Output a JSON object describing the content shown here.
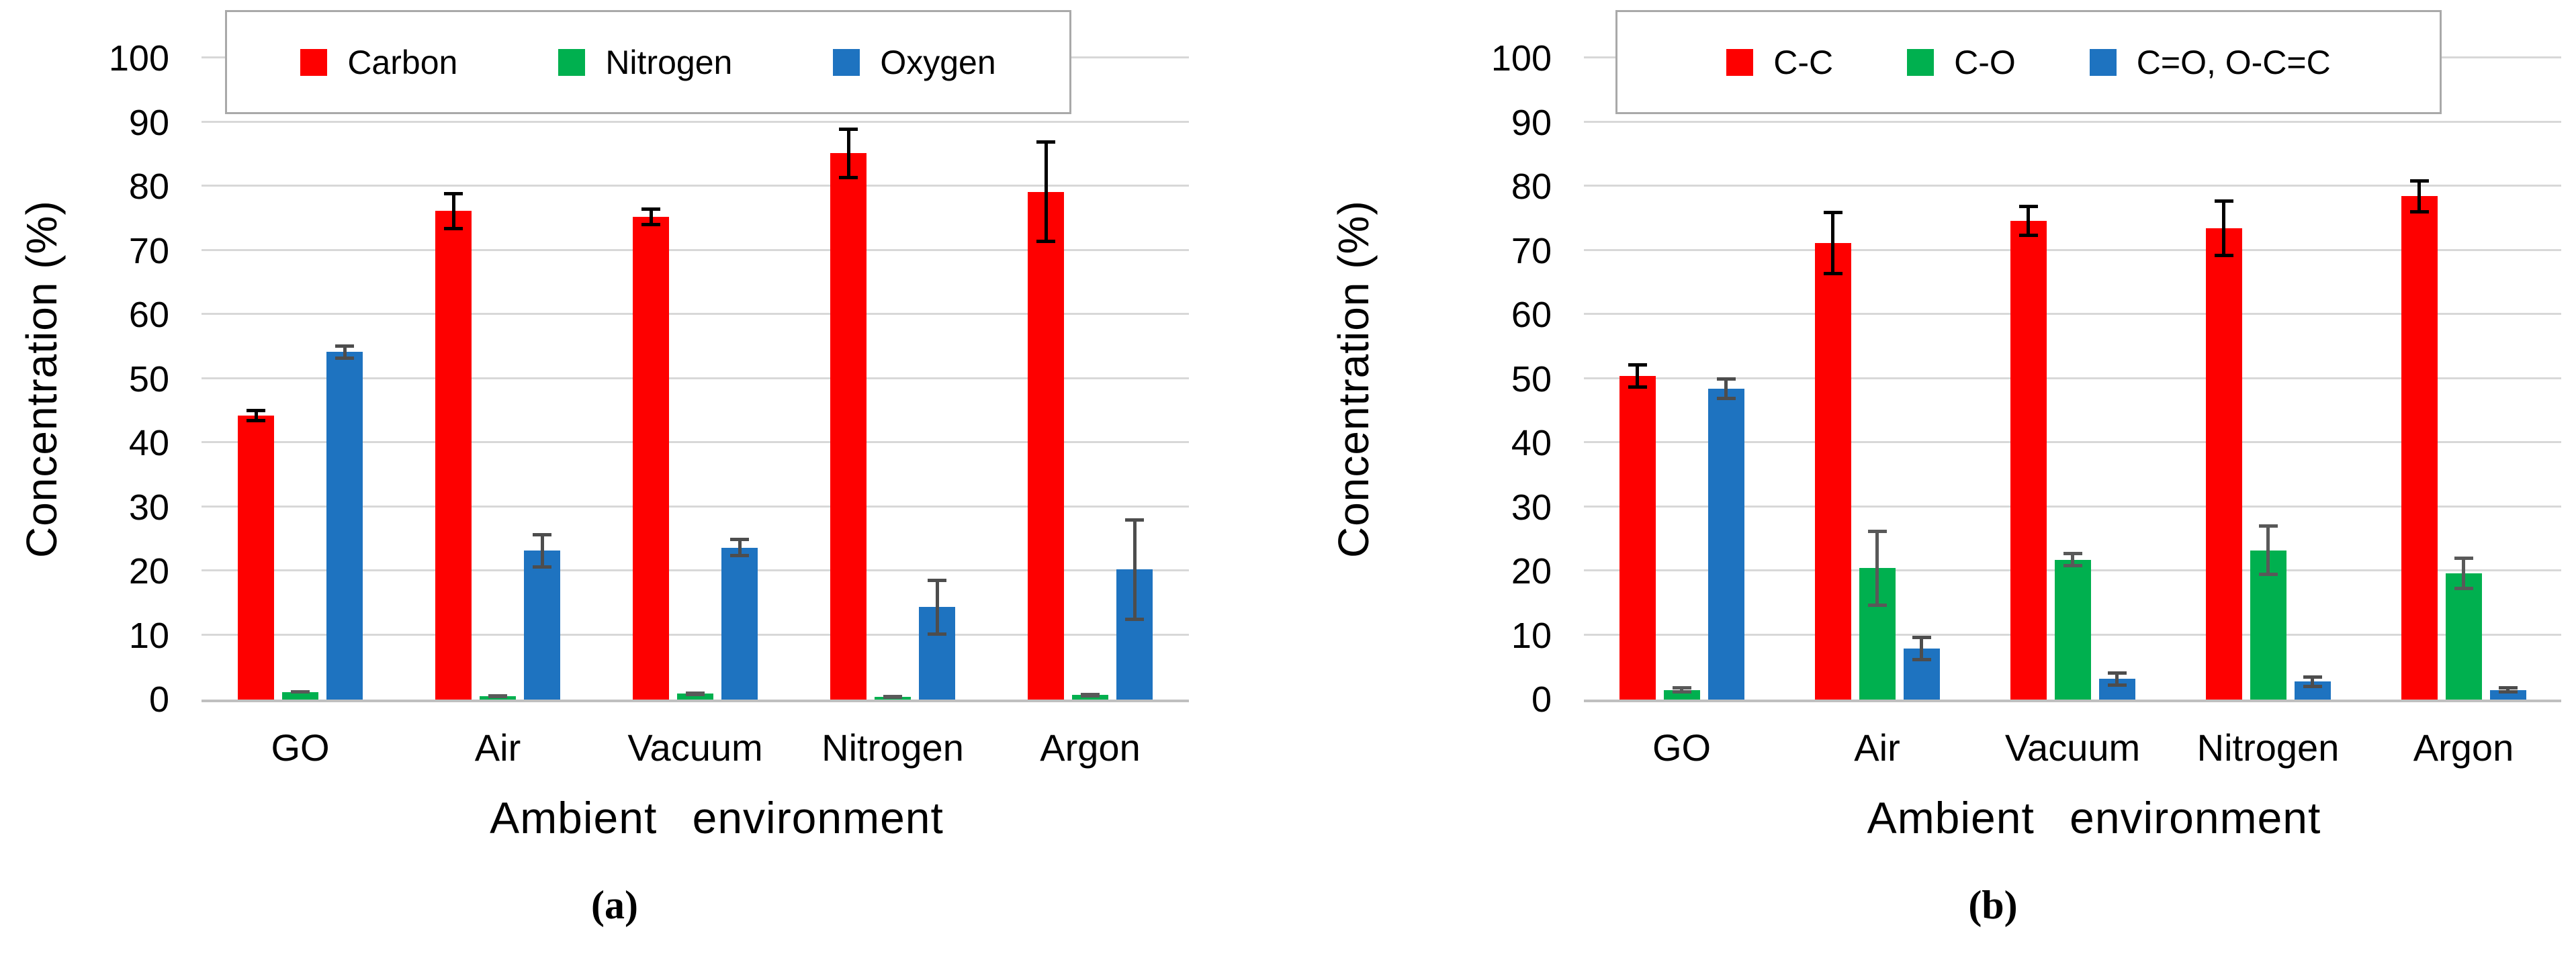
{
  "figure": {
    "background": "#FFFFFF",
    "gridline_color": "#D8D8D8",
    "axis_color": "#BFBFBF",
    "legend_border_color": "#A9A9A9"
  },
  "chart_data": [
    {
      "id": "a",
      "type": "bar",
      "caption": "(a)",
      "title": "",
      "xlabel": "Ambient  environment",
      "ylabel": "Concentration (%)",
      "ylim": [
        0,
        100
      ],
      "ytick_step": 10,
      "ytick_labels": [
        "0",
        "10",
        "20",
        "30",
        "40",
        "50",
        "60",
        "70",
        "80",
        "90",
        "100"
      ],
      "grid": true,
      "legend_position": "top",
      "categories": [
        "GO",
        "Air",
        "Vacuum",
        "Nitrogen",
        "Argon"
      ],
      "series": [
        {
          "name": "Carbon",
          "color": "#FE0000",
          "error_color": "#000000",
          "values": [
            44.3,
            76.2,
            75.3,
            85.2,
            79.2
          ],
          "errors": [
            1.0,
            3.0,
            1.5,
            4.0,
            8.0
          ]
        },
        {
          "name": "Nitrogen",
          "color": "#00B04F",
          "error_color": "#595959",
          "values": [
            1.2,
            0.5,
            0.9,
            0.4,
            0.7
          ],
          "errors": [
            0.3,
            0.3,
            0.4,
            0.3,
            0.4
          ]
        },
        {
          "name": "Oxygen",
          "color": "#1E73C0",
          "error_color": "#4D4D4D",
          "values": [
            54.2,
            23.2,
            23.7,
            14.4,
            20.3
          ],
          "errors": [
            1.2,
            2.8,
            1.5,
            4.5,
            8.0
          ]
        }
      ]
    },
    {
      "id": "b",
      "type": "bar",
      "caption": "(b)",
      "title": "",
      "xlabel": "Ambient  environment",
      "ylabel": "Concentration (%)",
      "ylim": [
        0,
        100
      ],
      "ytick_step": 10,
      "ytick_labels": [
        "0",
        "10",
        "20",
        "30",
        "40",
        "50",
        "60",
        "70",
        "80",
        "90",
        "100"
      ],
      "grid": true,
      "legend_position": "top",
      "categories": [
        "GO",
        "Air",
        "Vacuum",
        "Nitrogen",
        "Argon"
      ],
      "series": [
        {
          "name": "C-C",
          "color": "#FE0000",
          "error_color": "#000000",
          "values": [
            50.5,
            71.2,
            74.7,
            73.5,
            78.5
          ],
          "errors": [
            2.0,
            5.0,
            2.5,
            4.5,
            2.7
          ]
        },
        {
          "name": "C-O",
          "color": "#00B04F",
          "error_color": "#595959",
          "values": [
            1.5,
            20.5,
            21.8,
            23.3,
            19.7
          ],
          "errors": [
            0.6,
            6.0,
            1.2,
            4.0,
            2.6
          ]
        },
        {
          "name": "C=O, O-C=C",
          "color": "#1E73C0",
          "error_color": "#4D4D4D",
          "values": [
            48.5,
            8.0,
            3.2,
            2.8,
            1.5
          ],
          "errors": [
            1.8,
            2.0,
            1.2,
            1.0,
            0.6
          ]
        }
      ]
    }
  ]
}
